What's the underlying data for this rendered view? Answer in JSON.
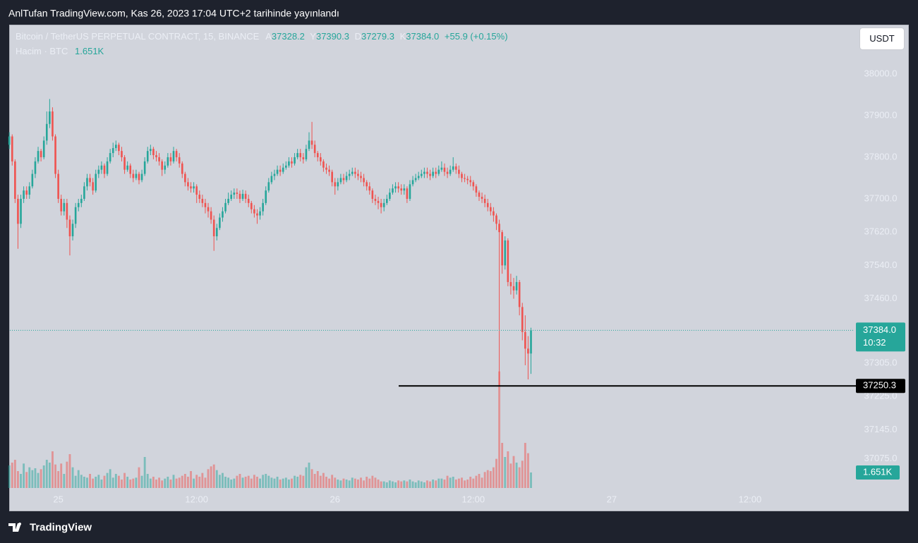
{
  "header_text": "AnlTufan TradingView.com, Kas 26, 2023 17:04 UTC+2 tarihinde yayınlandı",
  "footer_brand": "TradingView",
  "chart_data": {
    "type": "candlestick",
    "title": "Bitcoin / TetherUS PERPETUAL CONTRACT, 15, BINANCE",
    "ohlc_labels": [
      "A",
      "Y",
      "D",
      "K"
    ],
    "ohlc_values": [
      "37328.2",
      "37390.3",
      "37279.3",
      "37384.0"
    ],
    "change": "+55.9 (+0.15%)",
    "volume_title": "Hacim · BTC",
    "volume_last_label": "1.651K",
    "currency": "USDT",
    "countdown": "10:32",
    "marker_price": 37250.3,
    "up_color": "#26a69a",
    "down_color": "#ef5350",
    "marker_color": "#000000",
    "grid": false,
    "xlim": [
      -4.2,
      69
    ],
    "xticks": [
      {
        "value": 0,
        "label": "25"
      },
      {
        "value": 12,
        "label": "12:00"
      },
      {
        "value": 24,
        "label": "26"
      },
      {
        "value": 36,
        "label": "12:00"
      },
      {
        "value": 48,
        "label": "27"
      },
      {
        "value": 60,
        "label": "12:00"
      }
    ],
    "ylim": [
      37005,
      38118.6
    ],
    "yticks": [
      {
        "value": 38000,
        "label": "38000.0"
      },
      {
        "value": 37900,
        "label": "37900.0"
      },
      {
        "value": 37800,
        "label": "37800.0"
      },
      {
        "value": 37700,
        "label": "37700.0"
      },
      {
        "value": 37620,
        "label": "37620.0"
      },
      {
        "value": 37540,
        "label": "37540.0"
      },
      {
        "value": 37460,
        "label": "37460.0"
      },
      {
        "value": 37305,
        "label": "37305.0"
      },
      {
        "value": 37225,
        "label": "37225.0"
      },
      {
        "value": 37145,
        "label": "37145.0"
      },
      {
        "value": 37075,
        "label": "37075.0"
      }
    ],
    "y2lim": [
      0,
      30000
    ],
    "x": [
      -4.25,
      -4,
      -3.75,
      -3.5,
      -3.25,
      -3,
      -2.75,
      -2.5,
      -2.25,
      -2,
      -1.75,
      -1.5,
      -1.25,
      -1,
      -0.75,
      -0.5,
      -0.25,
      0,
      0.25,
      0.5,
      0.75,
      1,
      1.25,
      1.5,
      1.75,
      2,
      2.25,
      2.5,
      2.75,
      3,
      3.25,
      3.5,
      3.75,
      4,
      4.25,
      4.5,
      4.75,
      5,
      5.25,
      5.5,
      5.75,
      6,
      6.25,
      6.5,
      6.75,
      7,
      7.25,
      7.5,
      7.75,
      8,
      8.25,
      8.5,
      8.75,
      9,
      9.25,
      9.5,
      9.75,
      10,
      10.25,
      10.5,
      10.75,
      11,
      11.25,
      11.5,
      11.75,
      12,
      12.25,
      12.5,
      12.75,
      13,
      13.25,
      13.5,
      13.75,
      14,
      14.25,
      14.5,
      14.75,
      15,
      15.25,
      15.5,
      15.75,
      16,
      16.25,
      16.5,
      16.75,
      17,
      17.25,
      17.5,
      17.75,
      18,
      18.25,
      18.5,
      18.75,
      19,
      19.25,
      19.5,
      19.75,
      20,
      20.25,
      20.5,
      20.75,
      21,
      21.25,
      21.5,
      21.75,
      22,
      22.25,
      22.5,
      22.75,
      23,
      23.25,
      23.5,
      23.75,
      24,
      24.25,
      24.5,
      24.75,
      25,
      25.25,
      25.5,
      25.75,
      26,
      26.25,
      26.5,
      26.75,
      27,
      27.25,
      27.5,
      27.75,
      28,
      28.25,
      28.5,
      28.75,
      29,
      29.25,
      29.5,
      29.75,
      30,
      30.25,
      30.5,
      30.75,
      31,
      31.25,
      31.5,
      31.75,
      32,
      32.25,
      32.5,
      32.75,
      33,
      33.25,
      33.5,
      33.75,
      34,
      34.25,
      34.5,
      34.75,
      35,
      35.25,
      35.5,
      35.75,
      36,
      36.25,
      36.5,
      36.75,
      37,
      37.25,
      37.5,
      37.75,
      38,
      38.25,
      38.5,
      38.75,
      39,
      39.25,
      39.5,
      39.75,
      40,
      40.25,
      40.5,
      40.75,
      41
    ],
    "open": [
      37830,
      37850,
      37790,
      37700,
      37640,
      37700,
      37720,
      37710,
      37730,
      37760,
      37790,
      37815,
      37800,
      37840,
      37880,
      37910,
      37850,
      37760,
      37700,
      37670,
      37690,
      37650,
      37610,
      37640,
      37680,
      37690,
      37700,
      37730,
      37750,
      37740,
      37720,
      37760,
      37770,
      37780,
      37760,
      37790,
      37810,
      37822,
      37830,
      37815,
      37800,
      37770,
      37780,
      37760,
      37750,
      37760,
      37745,
      37760,
      37790,
      37815,
      37820,
      37805,
      37800,
      37790,
      37770,
      37780,
      37800,
      37790,
      37815,
      37800,
      37785,
      37760,
      37740,
      37730,
      37725,
      37730,
      37710,
      37700,
      37690,
      37680,
      37670,
      37650,
      37610,
      37630,
      37655,
      37670,
      37690,
      37700,
      37710,
      37715,
      37712,
      37700,
      37712,
      37700,
      37690,
      37675,
      37665,
      37660,
      37670,
      37690,
      37720,
      37740,
      37755,
      37760,
      37770,
      37765,
      37775,
      37780,
      37790,
      37785,
      37800,
      37810,
      37800,
      37795,
      37820,
      37840,
      37830,
      37810,
      37800,
      37790,
      37775,
      37770,
      37765,
      37740,
      37730,
      37740,
      37750,
      37745,
      37755,
      37760,
      37765,
      37760,
      37755,
      37750,
      37740,
      37730,
      37720,
      37700,
      37695,
      37690,
      37680,
      37690,
      37700,
      37715,
      37725,
      37730,
      37725,
      37720,
      37725,
      37700,
      37735,
      37745,
      37750,
      37755,
      37760,
      37765,
      37760,
      37755,
      37765,
      37760,
      37770,
      37775,
      37765,
      37760,
      37770,
      37778,
      37770,
      37760,
      37750,
      37748,
      37745,
      37740,
      37730,
      37715,
      37705,
      37700,
      37690,
      37680,
      37670,
      37660,
      37640,
      37620,
      37540,
      37600,
      37500,
      37490,
      37480,
      37500,
      37440,
      37380,
      37340,
      37328.2
    ],
    "high": [
      37860,
      37855,
      37795,
      37710,
      37710,
      37730,
      37730,
      37740,
      37770,
      37800,
      37825,
      37820,
      37850,
      37910,
      37940,
      37920,
      37855,
      37770,
      37710,
      37700,
      37700,
      37660,
      37650,
      37690,
      37700,
      37710,
      37740,
      37760,
      37760,
      37750,
      37770,
      37780,
      37790,
      37785,
      37800,
      37820,
      37835,
      37840,
      37835,
      37825,
      37805,
      37790,
      37785,
      37770,
      37770,
      37765,
      37770,
      37800,
      37825,
      37830,
      37825,
      37815,
      37810,
      37795,
      37790,
      37810,
      37810,
      37825,
      37820,
      37810,
      37790,
      37765,
      37750,
      37740,
      37740,
      37735,
      37720,
      37710,
      37700,
      37690,
      37680,
      37660,
      37640,
      37665,
      37680,
      37700,
      37715,
      37720,
      37725,
      37725,
      37720,
      37722,
      37720,
      37710,
      37695,
      37685,
      37675,
      37680,
      37700,
      37730,
      37750,
      37765,
      37770,
      37780,
      37780,
      37785,
      37790,
      37800,
      37800,
      37810,
      37820,
      37820,
      37810,
      37830,
      37860,
      37885,
      37840,
      37815,
      37810,
      37795,
      37785,
      37780,
      37770,
      37750,
      37750,
      37760,
      37760,
      37765,
      37770,
      37775,
      37775,
      37770,
      37765,
      37760,
      37745,
      37740,
      37725,
      37710,
      37705,
      37700,
      37700,
      37710,
      37725,
      37735,
      37740,
      37740,
      37735,
      37735,
      37730,
      37745,
      37755,
      37760,
      37765,
      37770,
      37775,
      37775,
      37770,
      37775,
      37775,
      37780,
      37790,
      37785,
      37775,
      37780,
      37800,
      37785,
      37780,
      37765,
      37760,
      37755,
      37755,
      37745,
      37735,
      37720,
      37715,
      37710,
      37700,
      37690,
      37680,
      37665,
      37650,
      37625,
      37610,
      37605,
      37520,
      37510,
      37515,
      37505,
      37450,
      37420,
      37370,
      37390.3
    ],
    "low": [
      37820,
      37780,
      37690,
      37580,
      37630,
      37690,
      37700,
      37700,
      37725,
      37750,
      37785,
      37790,
      37795,
      37830,
      37870,
      37840,
      37750,
      37690,
      37660,
      37660,
      37630,
      37564,
      37600,
      37630,
      37670,
      37680,
      37695,
      37720,
      37730,
      37710,
      37715,
      37750,
      37760,
      37750,
      37755,
      37785,
      37800,
      37815,
      37805,
      37790,
      37760,
      37765,
      37750,
      37740,
      37745,
      37735,
      37740,
      37755,
      37785,
      37805,
      37795,
      37790,
      37780,
      37755,
      37760,
      37775,
      37780,
      37785,
      37790,
      37775,
      37750,
      37730,
      37720,
      37715,
      37715,
      37690,
      37690,
      37680,
      37665,
      37655,
      37640,
      37575,
      37600,
      37625,
      37645,
      37665,
      37685,
      37695,
      37700,
      37700,
      37690,
      37695,
      37690,
      37680,
      37665,
      37655,
      37640,
      37650,
      37660,
      37685,
      37715,
      37735,
      37745,
      37755,
      37755,
      37760,
      37770,
      37775,
      37775,
      37780,
      37795,
      37790,
      37785,
      37790,
      37815,
      37820,
      37800,
      37790,
      37780,
      37765,
      37760,
      37755,
      37730,
      37710,
      37720,
      37735,
      37735,
      37740,
      37745,
      37755,
      37750,
      37745,
      37740,
      37730,
      37720,
      37710,
      37690,
      37685,
      37675,
      37665,
      37670,
      37685,
      37695,
      37710,
      37715,
      37715,
      37710,
      37710,
      37690,
      37695,
      37730,
      37740,
      37745,
      37750,
      37750,
      37750,
      37745,
      37750,
      37750,
      37755,
      37765,
      37755,
      37750,
      37755,
      37765,
      37760,
      37750,
      37740,
      37740,
      37735,
      37730,
      37720,
      37705,
      37695,
      37690,
      37680,
      37670,
      37660,
      37645,
      37625,
      37250.3,
      37520,
      37530,
      37490,
      37470,
      37460,
      37470,
      37420,
      37360,
      37300,
      37266,
      37279.3
    ],
    "close": [
      37850,
      37790,
      37700,
      37640,
      37700,
      37720,
      37710,
      37730,
      37760,
      37790,
      37815,
      37800,
      37840,
      37880,
      37910,
      37850,
      37760,
      37700,
      37670,
      37690,
      37650,
      37610,
      37640,
      37680,
      37690,
      37700,
      37730,
      37750,
      37740,
      37720,
      37760,
      37770,
      37780,
      37760,
      37790,
      37810,
      37822,
      37830,
      37815,
      37800,
      37770,
      37780,
      37760,
      37750,
      37760,
      37745,
      37760,
      37790,
      37815,
      37820,
      37805,
      37800,
      37790,
      37770,
      37780,
      37800,
      37790,
      37815,
      37800,
      37785,
      37760,
      37740,
      37730,
      37725,
      37730,
      37710,
      37700,
      37690,
      37680,
      37670,
      37650,
      37610,
      37630,
      37655,
      37670,
      37690,
      37700,
      37710,
      37715,
      37712,
      37700,
      37712,
      37700,
      37690,
      37675,
      37665,
      37660,
      37670,
      37690,
      37720,
      37740,
      37755,
      37760,
      37770,
      37765,
      37775,
      37780,
      37790,
      37785,
      37800,
      37810,
      37800,
      37795,
      37820,
      37840,
      37830,
      37810,
      37800,
      37790,
      37775,
      37770,
      37765,
      37740,
      37730,
      37740,
      37750,
      37745,
      37755,
      37760,
      37765,
      37760,
      37755,
      37750,
      37740,
      37730,
      37720,
      37700,
      37695,
      37690,
      37680,
      37690,
      37700,
      37715,
      37725,
      37730,
      37725,
      37720,
      37725,
      37700,
      37735,
      37745,
      37750,
      37755,
      37760,
      37765,
      37760,
      37755,
      37765,
      37760,
      37770,
      37775,
      37765,
      37760,
      37770,
      37778,
      37770,
      37760,
      37750,
      37748,
      37745,
      37740,
      37730,
      37715,
      37705,
      37700,
      37690,
      37680,
      37670,
      37660,
      37640,
      37620,
      37540,
      37600,
      37500,
      37490,
      37480,
      37500,
      37440,
      37380,
      37340,
      37328.2,
      37384.0
    ],
    "volume": [
      2400,
      2700,
      3000,
      1800,
      1500,
      2600,
      1700,
      2200,
      1900,
      2100,
      1600,
      2000,
      2400,
      3000,
      2700,
      3900,
      2500,
      1800,
      2600,
      1500,
      2800,
      3600,
      2200,
      1300,
      1900,
      1400,
      1200,
      1100,
      1500,
      1000,
      1200,
      1400,
      900,
      1300,
      1600,
      2000,
      1100,
      1500,
      1300,
      900,
      1600,
      1200,
      900,
      1000,
      1100,
      2200,
      1300,
      3300,
      1500,
      1000,
      1200,
      900,
      1100,
      800,
      1000,
      1200,
      900,
      1400,
      1000,
      1100,
      1300,
      1500,
      1200,
      1800,
      1000,
      1400,
      1200,
      1600,
      1100,
      2000,
      2300,
      2500,
      1900,
      1400,
      1600,
      1200,
      1100,
      900,
      1000,
      1300,
      1500,
      1100,
      1200,
      1300,
      1000,
      1400,
      1200,
      1000,
      1400,
      1500,
      1300,
      1100,
      1000,
      1200,
      900,
      1000,
      1100,
      900,
      1000,
      1300,
      1200,
      1400,
      1300,
      2200,
      2700,
      2000,
      1500,
      1800,
      1300,
      1600,
      1200,
      1000,
      1400,
      1100,
      900,
      800,
      1000,
      900,
      800,
      1100,
      1000,
      900,
      1100,
      800,
      1200,
      1000,
      1300,
      1100,
      900,
      700,
      700,
      600,
      800,
      700,
      600,
      800,
      700,
      800,
      700,
      900,
      700,
      600,
      800,
      700,
      600,
      800,
      700,
      900,
      800,
      1000,
      1000,
      900,
      1300,
      1100,
      1200,
      900,
      1000,
      1100,
      800,
      900,
      1200,
      1000,
      1300,
      1500,
      1100,
      1700,
      1900,
      1800,
      2200,
      3100,
      12400,
      4800,
      3300,
      3900,
      2600,
      3400,
      2700,
      2200,
      2900,
      4800,
      3700,
      1651
    ]
  }
}
